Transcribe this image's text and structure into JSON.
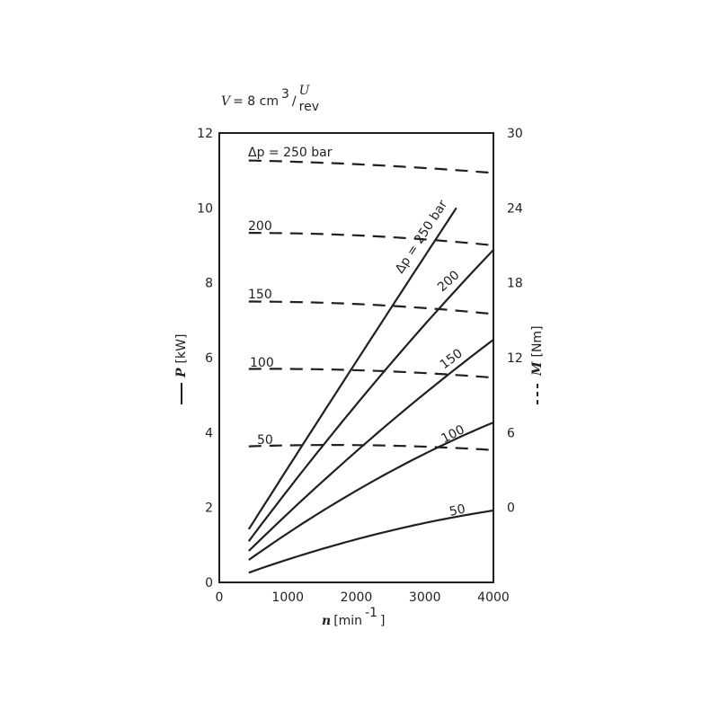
{
  "chart_data": {
    "type": "line",
    "title": "V = 8 cm ³/U rev",
    "title_parts": {
      "symbol": "V",
      "eq": "= 8 cm",
      "sup": "3",
      "slash": "/",
      "num": "U",
      "den": "rev"
    },
    "xlabel": {
      "symbol": "n",
      "unit": "[min",
      "exp": "-1",
      "close": "]"
    },
    "ylabel_left": {
      "symbol": "P",
      "unit": "[kW]",
      "legend_style": "solid"
    },
    "ylabel_right": {
      "symbol": "M",
      "unit": "[Nm]",
      "legend_style": "dashed"
    },
    "xlim": [
      0,
      4000
    ],
    "ylim_left": [
      0,
      12
    ],
    "ylim_right_ticks_range": [
      0,
      30
    ],
    "x_ticks": [
      "0",
      "1000",
      "2000",
      "3000",
      "4000"
    ],
    "y_left_ticks": [
      "0",
      "2",
      "4",
      "6",
      "8",
      "10",
      "12"
    ],
    "y_right_ticks": [
      "0",
      "6",
      "12",
      "18",
      "24",
      "30"
    ],
    "grid": false,
    "color": "#231f20",
    "power_series": [
      {
        "name": "Δp = 250 bar",
        "x": [
          430,
          2000,
          3460
        ],
        "y": [
          1.42,
          5.9,
          10.0
        ]
      },
      {
        "name": "200",
        "x": [
          430,
          2000,
          4000
        ],
        "y": [
          1.1,
          4.75,
          8.88
        ]
      },
      {
        "name": "150",
        "x": [
          430,
          2000,
          4000
        ],
        "y": [
          0.84,
          3.5,
          6.48
        ]
      },
      {
        "name": "100",
        "x": [
          430,
          2000,
          4000
        ],
        "y": [
          0.6,
          2.45,
          4.27
        ]
      },
      {
        "name": "50",
        "x": [
          430,
          2000,
          4000
        ],
        "y": [
          0.26,
          1.15,
          1.92
        ]
      }
    ],
    "torque_series": [
      {
        "name": "Δp = 250 bar",
        "x": [
          430,
          2000,
          4000
        ],
        "y": [
          27.8,
          27.5,
          26.8
        ]
      },
      {
        "name": "200",
        "x": [
          430,
          2000,
          4000
        ],
        "y": [
          22.0,
          21.8,
          21.0
        ]
      },
      {
        "name": "150",
        "x": [
          430,
          2000,
          4000
        ],
        "y": [
          16.5,
          16.3,
          15.5
        ]
      },
      {
        "name": "100",
        "x": [
          430,
          2000,
          4000
        ],
        "y": [
          11.1,
          11.0,
          10.4
        ]
      },
      {
        "name": "50",
        "x": [
          430,
          2000,
          4000
        ],
        "y": [
          4.9,
          5.0,
          4.6
        ]
      }
    ]
  }
}
